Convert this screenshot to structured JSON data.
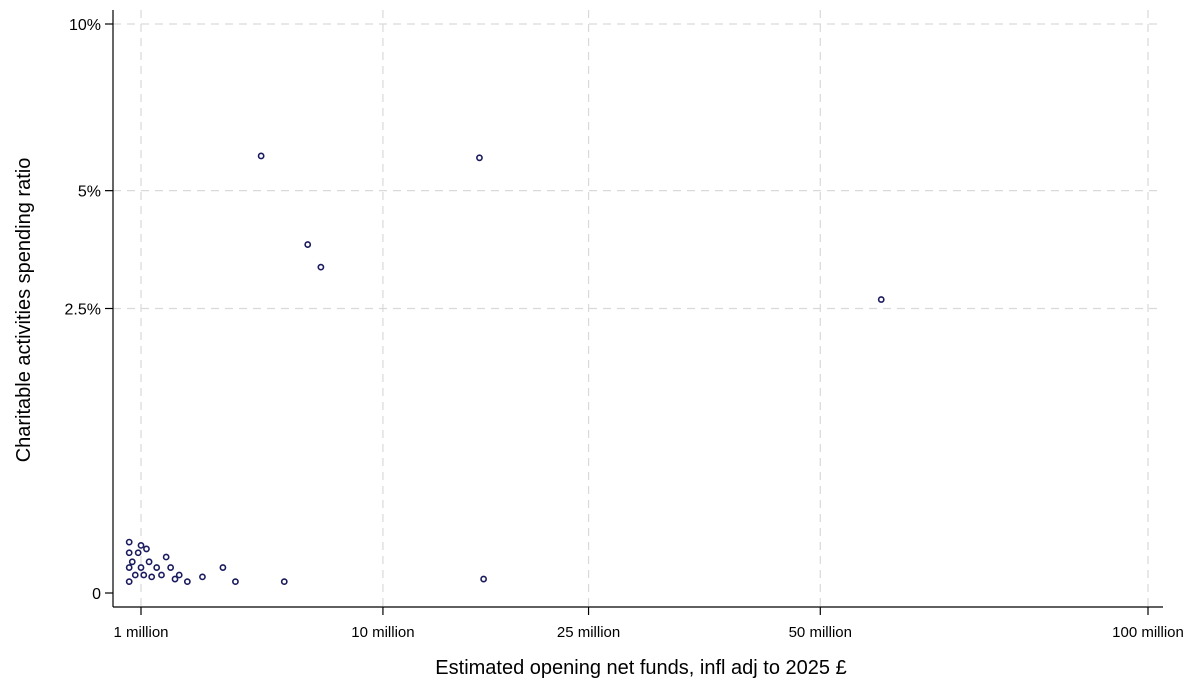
{
  "chart_data": {
    "type": "scatter",
    "title": "",
    "xlabel": "Estimated opening net funds, infl adj to 2025 £",
    "ylabel": "Charitable activities spending ratio",
    "x_scale": "sqrt",
    "y_scale": "sqrt",
    "xlim": [
      0,
      100000000
    ],
    "ylim": [
      0,
      10
    ],
    "x_ticks": [
      {
        "value": 1000000,
        "label": "1 million"
      },
      {
        "value": 10000000,
        "label": "10 million"
      },
      {
        "value": 25000000,
        "label": "25 million"
      },
      {
        "value": 50000000,
        "label": "50 million"
      },
      {
        "value": 100000000,
        "label": "100 million"
      }
    ],
    "y_ticks": [
      {
        "value": 0,
        "label": "0"
      },
      {
        "value": 2.5,
        "label": "2.5%"
      },
      {
        "value": 5,
        "label": "5%"
      },
      {
        "value": 10,
        "label": "10%"
      }
    ],
    "grid": true,
    "grid_style": "dashed",
    "legend": "none",
    "point_color": "#1a1a5e",
    "series": [
      {
        "points": [
          {
            "x": 4300000,
            "y": 5.9
          },
          {
            "x": 16200000,
            "y": 5.85
          },
          {
            "x": 6200000,
            "y": 3.75
          },
          {
            "x": 6800000,
            "y": 3.28
          },
          {
            "x": 58000000,
            "y": 2.66
          },
          {
            "x": 800000,
            "y": 0.08
          },
          {
            "x": 800000,
            "y": 0.05
          },
          {
            "x": 800000,
            "y": 0.02
          },
          {
            "x": 800000,
            "y": 0.004
          },
          {
            "x": 850000,
            "y": 0.03
          },
          {
            "x": 900000,
            "y": 0.01
          },
          {
            "x": 950000,
            "y": 0.05
          },
          {
            "x": 1000000,
            "y": 0.07
          },
          {
            "x": 1000000,
            "y": 0.02
          },
          {
            "x": 1050000,
            "y": 0.01
          },
          {
            "x": 1100000,
            "y": 0.06
          },
          {
            "x": 1150000,
            "y": 0.03
          },
          {
            "x": 1200000,
            "y": 0.008
          },
          {
            "x": 1300000,
            "y": 0.02
          },
          {
            "x": 1400000,
            "y": 0.01
          },
          {
            "x": 1500000,
            "y": 0.04
          },
          {
            "x": 1600000,
            "y": 0.02
          },
          {
            "x": 1700000,
            "y": 0.006
          },
          {
            "x": 1800000,
            "y": 0.01
          },
          {
            "x": 2000000,
            "y": 0.004
          },
          {
            "x": 2400000,
            "y": 0.008
          },
          {
            "x": 3000000,
            "y": 0.02
          },
          {
            "x": 3400000,
            "y": 0.004
          },
          {
            "x": 5200000,
            "y": 0.004
          },
          {
            "x": 16500000,
            "y": 0.006
          }
        ]
      }
    ]
  }
}
